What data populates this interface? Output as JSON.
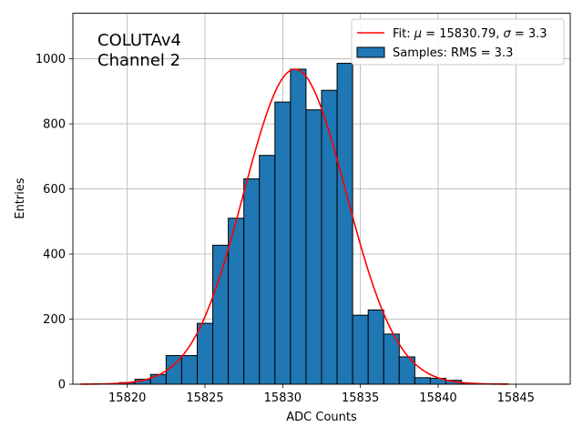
{
  "chart_data": {
    "type": "bar",
    "xlabel": "ADC Counts",
    "ylabel": "Entries",
    "xlim": [
      15816.5,
      15848.5
    ],
    "ylim": [
      0,
      1140
    ],
    "grid": true,
    "legend_position": "top-right",
    "annotation": [
      "COLUTAv4",
      "Channel 2"
    ],
    "x_ticks": [
      15820,
      15825,
      15830,
      15835,
      15840,
      15845
    ],
    "y_ticks": [
      0,
      200,
      400,
      600,
      800,
      1000
    ],
    "bar_color": "#1f77b4",
    "fit_color": "#ff0000",
    "histogram": {
      "name": "Samples: RMS = 3.3",
      "bins": [
        {
          "x": 15820,
          "y": 5
        },
        {
          "x": 15821,
          "y": 15
        },
        {
          "x": 15822,
          "y": 30
        },
        {
          "x": 15823,
          "y": 88
        },
        {
          "x": 15824,
          "y": 88
        },
        {
          "x": 15825,
          "y": 187
        },
        {
          "x": 15826,
          "y": 427
        },
        {
          "x": 15827,
          "y": 510
        },
        {
          "x": 15828,
          "y": 631
        },
        {
          "x": 15829,
          "y": 703
        },
        {
          "x": 15830,
          "y": 867
        },
        {
          "x": 15831,
          "y": 968
        },
        {
          "x": 15832,
          "y": 843
        },
        {
          "x": 15833,
          "y": 903
        },
        {
          "x": 15834,
          "y": 986
        },
        {
          "x": 15835,
          "y": 212
        },
        {
          "x": 15836,
          "y": 228
        },
        {
          "x": 15837,
          "y": 154
        },
        {
          "x": 15838,
          "y": 84
        },
        {
          "x": 15839,
          "y": 20
        },
        {
          "x": 15840,
          "y": 18
        },
        {
          "x": 15841,
          "y": 12
        },
        {
          "x": 15842,
          "y": 3
        },
        {
          "x": 15843,
          "y": 1
        },
        {
          "x": 15844,
          "y": 1
        }
      ]
    },
    "fit": {
      "name_prefix": "Fit: ",
      "mu_symbol": "μ",
      "mu_text": " = 15830.79, ",
      "sigma_symbol": "σ",
      "sigma_text": " = 3.3",
      "mu": 15830.79,
      "sigma": 3.3,
      "amplitude": 968,
      "x_range": [
        15817,
        15844.5
      ]
    }
  }
}
